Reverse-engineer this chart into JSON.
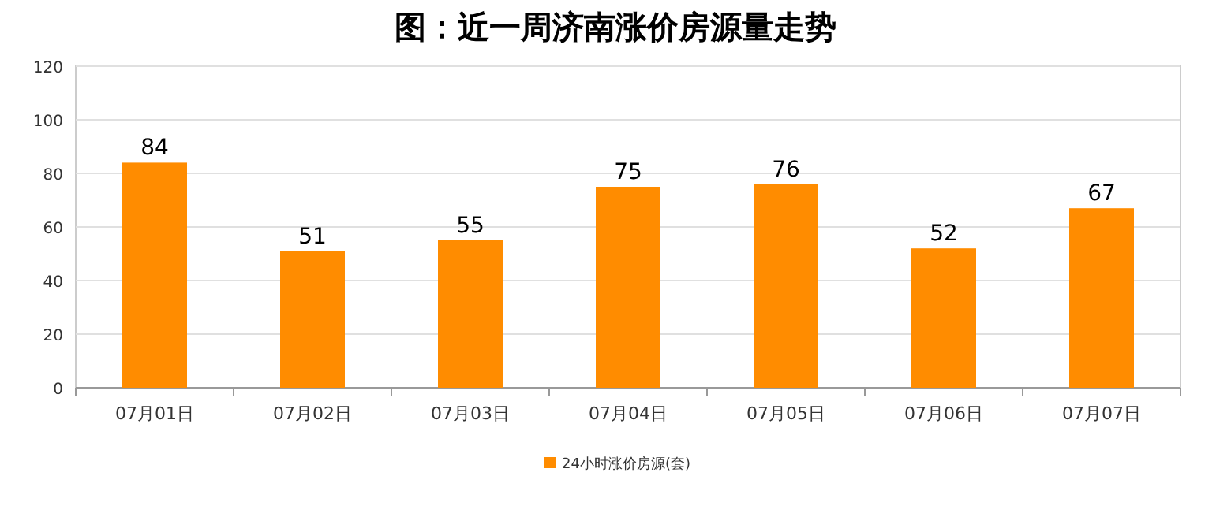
{
  "chart_data": {
    "type": "bar",
    "title": "图：近一周济南涨价房源量走势",
    "categories": [
      "07月01日",
      "07月02日",
      "07月03日",
      "07月04日",
      "07月05日",
      "07月06日",
      "07月07日"
    ],
    "series": [
      {
        "name": "24小时涨价房源(套)",
        "color": "#ff8c00",
        "values": [
          84,
          51,
          55,
          75,
          76,
          52,
          67
        ]
      }
    ],
    "ylim": [
      0,
      120
    ],
    "yticks": [
      0,
      20,
      40,
      60,
      80,
      100,
      120
    ],
    "grid": "y",
    "legend": "bottom",
    "data_labels": true
  }
}
